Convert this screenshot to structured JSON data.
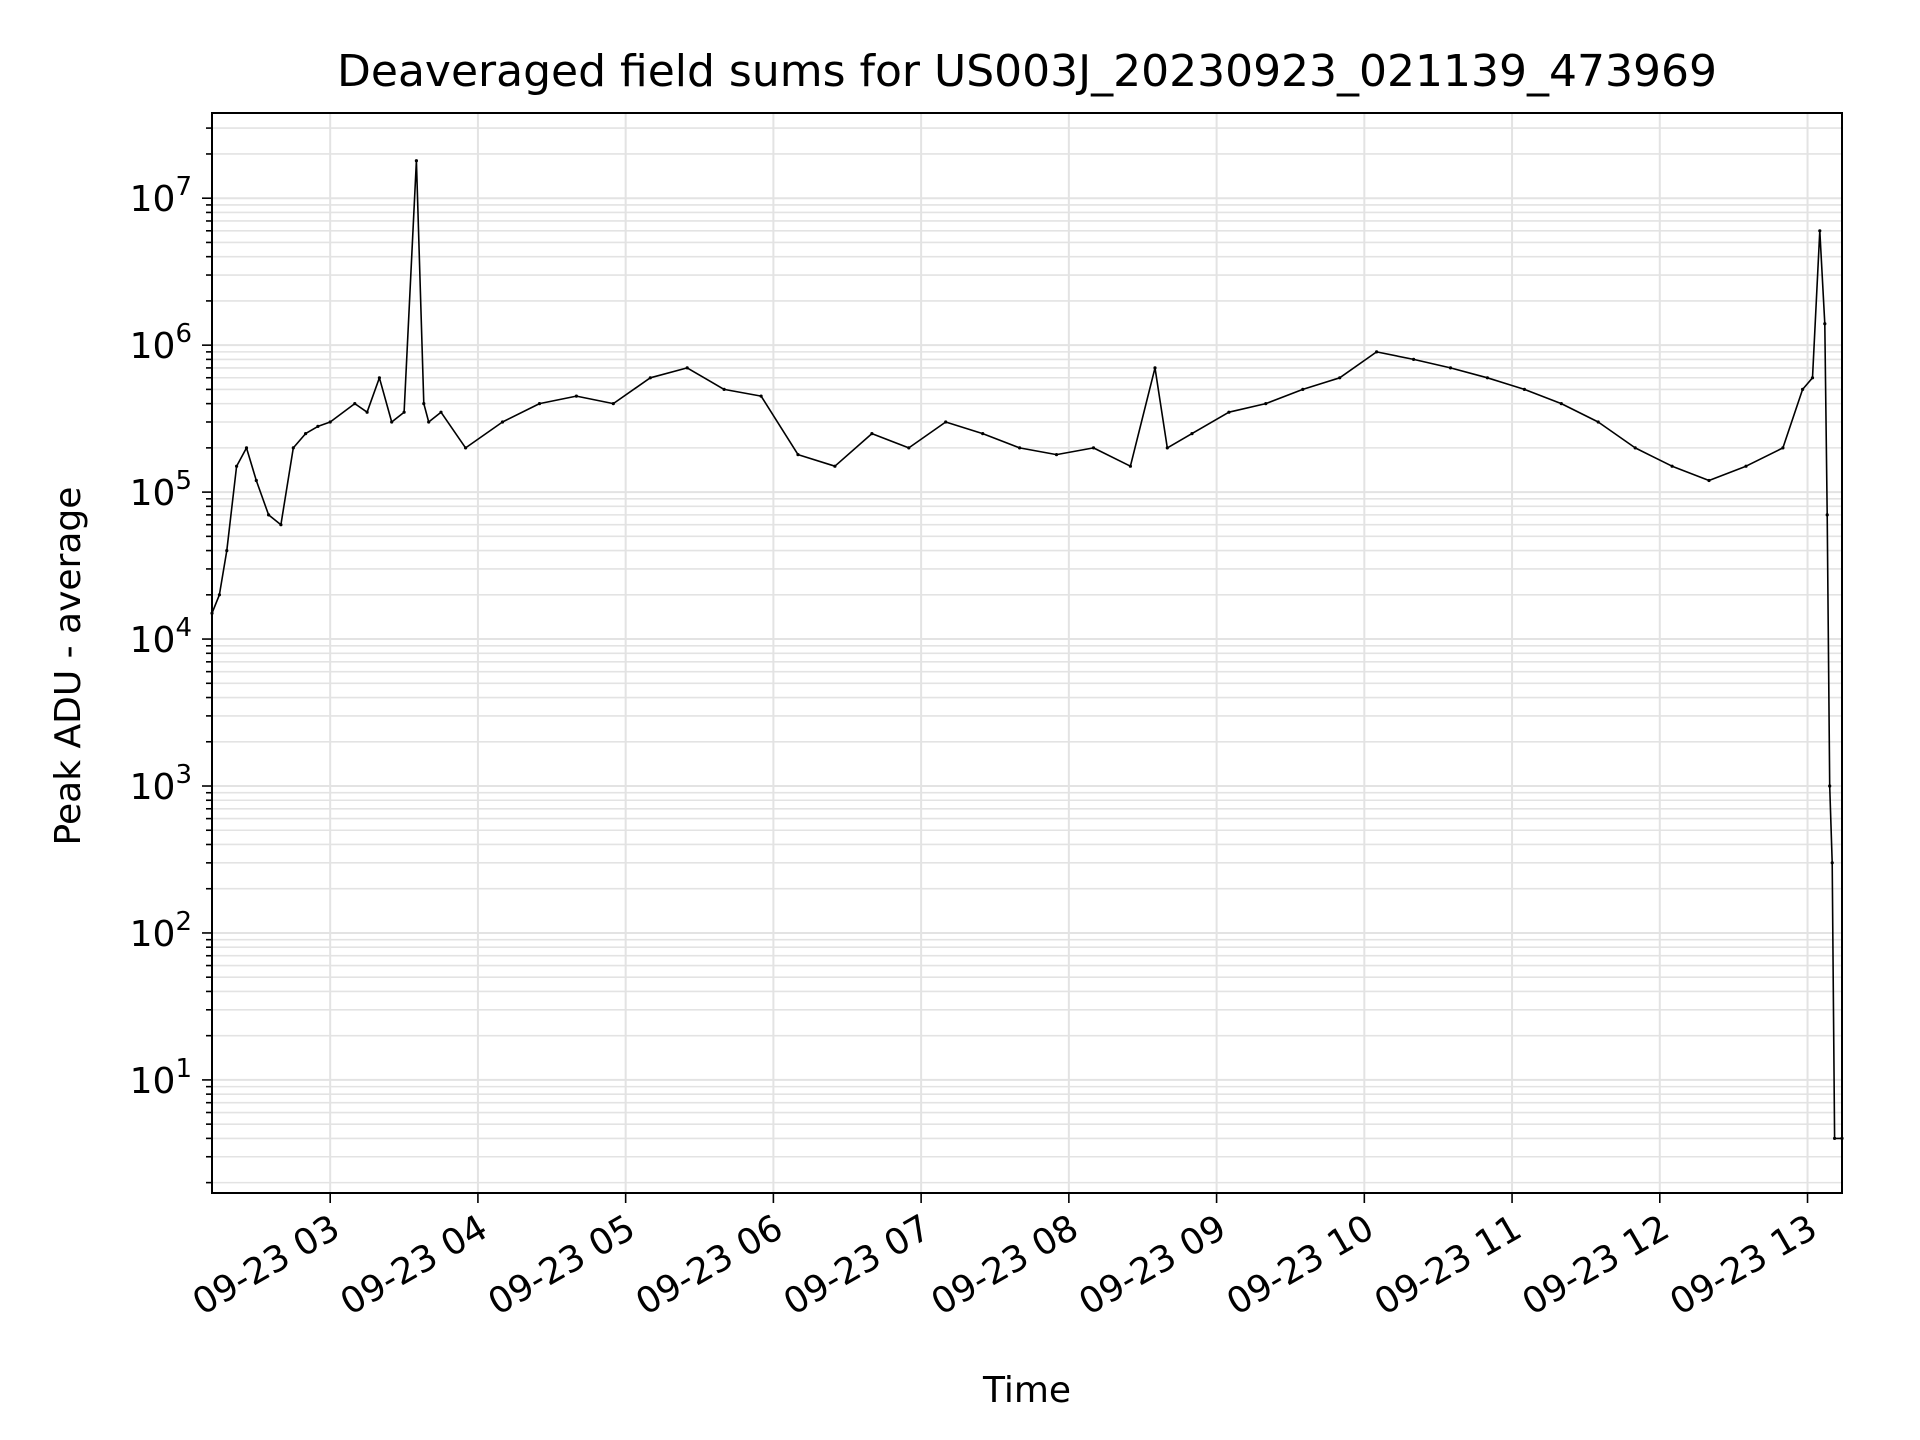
{
  "chart_data": {
    "type": "line",
    "title": "Deaveraged field sums for US003J_20230923_021139_473969",
    "xlabel": "Time",
    "ylabel": "Peak ADU - average",
    "yscale": "log",
    "ylim": [
      1.7,
      38000000
    ],
    "xlim": [
      "2023-09-23 02:12",
      "2023-09-23 13:14"
    ],
    "grid": true,
    "x_ticks": [
      {
        "label": "09-23 03",
        "value": "2023-09-23 03:00"
      },
      {
        "label": "09-23 04",
        "value": "2023-09-23 04:00"
      },
      {
        "label": "09-23 05",
        "value": "2023-09-23 05:00"
      },
      {
        "label": "09-23 06",
        "value": "2023-09-23 06:00"
      },
      {
        "label": "09-23 07",
        "value": "2023-09-23 07:00"
      },
      {
        "label": "09-23 08",
        "value": "2023-09-23 08:00"
      },
      {
        "label": "09-23 09",
        "value": "2023-09-23 09:00"
      },
      {
        "label": "09-23 10",
        "value": "2023-09-23 10:00"
      },
      {
        "label": "09-23 11",
        "value": "2023-09-23 11:00"
      },
      {
        "label": "09-23 12",
        "value": "2023-09-23 12:00"
      },
      {
        "label": "09-23 13",
        "value": "2023-09-23 13:00"
      }
    ],
    "y_ticks": [
      {
        "base": "10",
        "exp": "1",
        "value": 10
      },
      {
        "base": "10",
        "exp": "2",
        "value": 100
      },
      {
        "base": "10",
        "exp": "3",
        "value": 1000
      },
      {
        "base": "10",
        "exp": "4",
        "value": 10000
      },
      {
        "base": "10",
        "exp": "5",
        "value": 100000
      },
      {
        "base": "10",
        "exp": "6",
        "value": 1000000
      },
      {
        "base": "10",
        "exp": "7",
        "value": 10000000
      }
    ],
    "series": [
      {
        "color": "#000000",
        "x": [
          "2023-09-23 02:12",
          "2023-09-23 02:15",
          "2023-09-23 02:18",
          "2023-09-23 02:22",
          "2023-09-23 02:26",
          "2023-09-23 02:30",
          "2023-09-23 02:35",
          "2023-09-23 02:40",
          "2023-09-23 02:45",
          "2023-09-23 02:50",
          "2023-09-23 02:55",
          "2023-09-23 03:00",
          "2023-09-23 03:10",
          "2023-09-23 03:15",
          "2023-09-23 03:20",
          "2023-09-23 03:25",
          "2023-09-23 03:30",
          "2023-09-23 03:35",
          "2023-09-23 03:38",
          "2023-09-23 03:40",
          "2023-09-23 03:45",
          "2023-09-23 03:55",
          "2023-09-23 04:10",
          "2023-09-23 04:25",
          "2023-09-23 04:40",
          "2023-09-23 04:55",
          "2023-09-23 05:10",
          "2023-09-23 05:25",
          "2023-09-23 05:40",
          "2023-09-23 05:55",
          "2023-09-23 06:10",
          "2023-09-23 06:25",
          "2023-09-23 06:40",
          "2023-09-23 06:55",
          "2023-09-23 07:10",
          "2023-09-23 07:25",
          "2023-09-23 07:40",
          "2023-09-23 07:55",
          "2023-09-23 08:10",
          "2023-09-23 08:25",
          "2023-09-23 08:35",
          "2023-09-23 08:40",
          "2023-09-23 08:50",
          "2023-09-23 09:05",
          "2023-09-23 09:20",
          "2023-09-23 09:35",
          "2023-09-23 09:50",
          "2023-09-23 10:05",
          "2023-09-23 10:20",
          "2023-09-23 10:35",
          "2023-09-23 10:50",
          "2023-09-23 11:05",
          "2023-09-23 11:20",
          "2023-09-23 11:35",
          "2023-09-23 11:50",
          "2023-09-23 12:05",
          "2023-09-23 12:20",
          "2023-09-23 12:35",
          "2023-09-23 12:50",
          "2023-09-23 12:58",
          "2023-09-23 13:02",
          "2023-09-23 13:05",
          "2023-09-23 13:07",
          "2023-09-23 13:08",
          "2023-09-23 13:09",
          "2023-09-23 13:10",
          "2023-09-23 13:11",
          "2023-09-23 13:14"
        ],
        "values": [
          15000,
          20000,
          40000,
          150000,
          200000,
          120000,
          70000,
          60000,
          200000,
          250000,
          280000,
          300000,
          400000,
          350000,
          600000,
          300000,
          350000,
          18000000,
          400000,
          300000,
          350000,
          200000,
          300000,
          400000,
          450000,
          400000,
          600000,
          700000,
          500000,
          450000,
          180000,
          150000,
          250000,
          200000,
          300000,
          250000,
          200000,
          180000,
          200000,
          150000,
          700000,
          200000,
          250000,
          350000,
          400000,
          500000,
          600000,
          900000,
          800000,
          700000,
          600000,
          500000,
          400000,
          300000,
          200000,
          150000,
          120000,
          150000,
          200000,
          500000,
          600000,
          6000000,
          1400000,
          70000,
          1000,
          300,
          4,
          4
        ]
      }
    ]
  }
}
